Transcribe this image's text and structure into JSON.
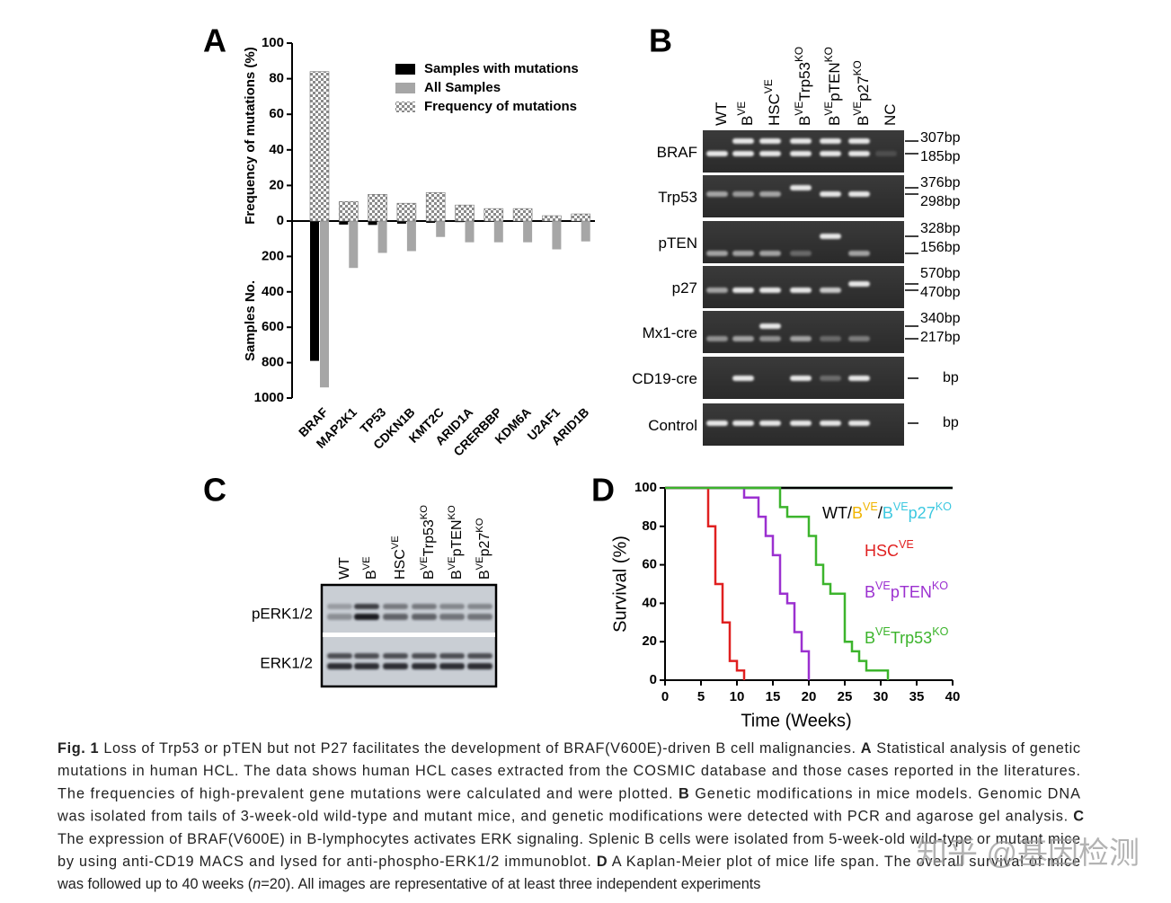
{
  "chart_data": [
    {
      "type": "bar",
      "panel": "A",
      "ylabel": "Frequency of mutations (%)",
      "y2label": "Samples No.",
      "categories": [
        "BRAF",
        "MAP2K1",
        "TP53",
        "CDKN1B",
        "KMT2C",
        "ARID1A",
        "CRERBBP",
        "KDM6A",
        "U2AF1",
        "ARID1B"
      ],
      "ylim": [
        0,
        100
      ],
      "yticks": [
        0,
        20,
        40,
        60,
        80,
        100
      ],
      "y2lim": [
        0,
        1000
      ],
      "y2ticks": [
        200,
        400,
        600,
        800,
        1000
      ],
      "series": [
        {
          "name": "Samples with mutations",
          "color": "#000000",
          "axis": "y2",
          "values": [
            790,
            20,
            22,
            15,
            10,
            6,
            4,
            4,
            2,
            2
          ]
        },
        {
          "name": "All Samples",
          "color": "#a6a6a6",
          "axis": "y2",
          "values": [
            940,
            265,
            180,
            170,
            90,
            120,
            120,
            120,
            160,
            115
          ]
        },
        {
          "name": "Frequency of mutations",
          "pattern": "checker",
          "values": [
            84,
            11,
            15,
            10,
            16,
            9,
            7,
            7,
            3,
            4
          ]
        }
      ]
    },
    {
      "type": "line",
      "step": true,
      "panel": "D",
      "xlabel": "Time (Weeks)",
      "ylabel": "Survival (%)",
      "xlim": [
        0,
        40
      ],
      "xticks": [
        0,
        5,
        10,
        15,
        20,
        25,
        30,
        35,
        40
      ],
      "ylim": [
        0,
        100
      ],
      "yticks": [
        0,
        20,
        40,
        60,
        80,
        100
      ],
      "series": [
        {
          "color": "#f0b400",
          "x": [
            0,
            40
          ],
          "values": [
            100,
            100
          ]
        },
        {
          "color": "#3cc8e0",
          "x": [
            0,
            40
          ],
          "values": [
            100,
            100
          ]
        },
        {
          "color": "#000000",
          "x": [
            0,
            40
          ],
          "values": [
            100,
            100
          ]
        },
        {
          "color": "#e02020",
          "x": [
            0,
            6,
            7,
            8,
            9,
            10,
            11
          ],
          "values": [
            100,
            80,
            50,
            30,
            10,
            5,
            0
          ]
        },
        {
          "color": "#9b30d0",
          "x": [
            0,
            11,
            13,
            14,
            15,
            16,
            17,
            18,
            19,
            20
          ],
          "values": [
            100,
            95,
            85,
            75,
            65,
            45,
            40,
            25,
            15,
            0
          ]
        },
        {
          "color": "#3cb42c",
          "x": [
            0,
            16,
            17,
            20,
            21,
            22,
            23,
            25,
            26,
            27,
            28,
            31
          ],
          "values": [
            100,
            90,
            85,
            75,
            60,
            50,
            45,
            20,
            15,
            10,
            5,
            0
          ]
        }
      ],
      "annotations": [
        [
          {
            "text": "WT/",
            "color": "#000000"
          },
          {
            "text": "B",
            "color": "#f0b400"
          },
          {
            "text": "VE",
            "sup": true,
            "color": "#f0b400"
          },
          {
            "text": "/",
            "color": "#000000"
          },
          {
            "text": "B",
            "color": "#3cc8e0"
          },
          {
            "text": "VE",
            "sup": true,
            "color": "#3cc8e0"
          },
          {
            "text": "p27",
            "color": "#3cc8e0"
          },
          {
            "text": "KO",
            "sup": true,
            "color": "#3cc8e0"
          }
        ],
        [
          {
            "text": "HSC",
            "color": "#e02020"
          },
          {
            "text": "VE",
            "sup": true,
            "color": "#e02020"
          }
        ],
        [
          {
            "text": "B",
            "color": "#9b30d0"
          },
          {
            "text": "VE",
            "sup": true,
            "color": "#9b30d0"
          },
          {
            "text": "pTEN",
            "color": "#9b30d0"
          },
          {
            "text": "KO",
            "sup": true,
            "color": "#9b30d0"
          }
        ],
        [
          {
            "text": "B",
            "color": "#3cb42c"
          },
          {
            "text": "VE",
            "sup": true,
            "color": "#3cb42c"
          },
          {
            "text": "Trp53",
            "color": "#3cb42c"
          },
          {
            "text": "KO",
            "sup": true,
            "color": "#3cb42c"
          }
        ]
      ]
    }
  ],
  "gel": {
    "panel": "B",
    "lanes": [
      [
        {
          "text": "WT"
        }
      ],
      [
        {
          "text": "B"
        },
        {
          "text": "VE",
          "sup": true
        }
      ],
      [
        {
          "text": "HSC"
        },
        {
          "text": "VE",
          "sup": true
        }
      ],
      [
        {
          "text": "B"
        },
        {
          "text": "VE",
          "sup": true
        },
        {
          "text": "Trp53"
        },
        {
          "text": "KO",
          "sup": true
        }
      ],
      [
        {
          "text": "B"
        },
        {
          "text": "VE",
          "sup": true
        },
        {
          "text": "pTEN"
        },
        {
          "text": "KO",
          "sup": true
        }
      ],
      [
        {
          "text": "B"
        },
        {
          "text": "VE",
          "sup": true
        },
        {
          "text": "p27"
        },
        {
          "text": "KO",
          "sup": true
        }
      ],
      [
        {
          "text": "NC"
        }
      ]
    ],
    "rows": [
      {
        "label": "BRAF",
        "sizes": [
          "307bp",
          "185bp"
        ]
      },
      {
        "label": "Trp53",
        "sizes": [
          "376bp",
          "298bp"
        ]
      },
      {
        "label": "pTEN",
        "sizes": [
          "328bp",
          "156bp"
        ]
      },
      {
        "label": "p27",
        "sizes": [
          "570bp",
          "470bp"
        ]
      },
      {
        "label": "Mx1-cre",
        "sizes": [
          "340bp",
          "217bp"
        ]
      },
      {
        "label": "CD19-cre",
        "sizes": [
          "bp"
        ]
      },
      {
        "label": "Control",
        "sizes": [
          "bp"
        ]
      }
    ]
  },
  "blot": {
    "panel": "C",
    "lanes": [
      [
        {
          "text": "WT"
        }
      ],
      [
        {
          "text": "B"
        },
        {
          "text": "VE",
          "sup": true
        }
      ],
      [
        {
          "text": "HSC"
        },
        {
          "text": "VE",
          "sup": true
        }
      ],
      [
        {
          "text": "B"
        },
        {
          "text": "VE",
          "sup": true
        },
        {
          "text": "Trp53"
        },
        {
          "text": "KO",
          "sup": true
        }
      ],
      [
        {
          "text": "B"
        },
        {
          "text": "VE",
          "sup": true
        },
        {
          "text": "pTEN"
        },
        {
          "text": "KO",
          "sup": true
        }
      ],
      [
        {
          "text": "B"
        },
        {
          "text": "VE",
          "sup": true
        },
        {
          "text": "p27"
        },
        {
          "text": "KO",
          "sup": true
        }
      ]
    ],
    "rows": [
      "pERK1/2",
      "ERK1/2"
    ]
  },
  "caption": {
    "lines": [
      [
        {
          "text": "Fig. 1",
          "bold": true
        },
        {
          "text": "  Loss of Trp53 or pTEN but not P27 facilitates the development of BRAF(V600E)-driven B cell malignancies. "
        },
        {
          "text": "A",
          "bold": true
        },
        {
          "text": " Statistical analysis of genetic"
        }
      ],
      [
        {
          "text": "mutations in human HCL. The data shows human HCL cases extracted from the COSMIC database and those cases reported in the literatures."
        }
      ],
      [
        {
          "text": "The frequencies of high-prevalent gene mutations were calculated and were plotted. "
        },
        {
          "text": "B",
          "bold": true
        },
        {
          "text": " Genetic modifications in mice models. Genomic DNA"
        }
      ],
      [
        {
          "text": "was isolated from tails of 3-week-old wild-type and mutant mice, and genetic modifications were detected with PCR and agarose gel analysis. "
        },
        {
          "text": "C",
          "bold": true
        }
      ],
      [
        {
          "text": "The expression of BRAF(V600E) in B-lymphocytes activates ERK signaling. Splenic B cells were isolated from 5-week-old wild-type or mutant mice"
        }
      ],
      [
        {
          "text": "by using anti-CD19 MACS and lysed for anti-phospho-ERK1/2 immunoblot. "
        },
        {
          "text": "D",
          "bold": true
        },
        {
          "text": " A Kaplan-Meier plot of mice life span. The overall survival of mice"
        }
      ],
      [
        {
          "text": "was followed up to 40 weeks ("
        },
        {
          "text": "n",
          "italic": true
        },
        {
          "text": "=20). All images are representative of at least three independent experiments"
        }
      ]
    ]
  },
  "watermark": "知乎 @基因检测"
}
